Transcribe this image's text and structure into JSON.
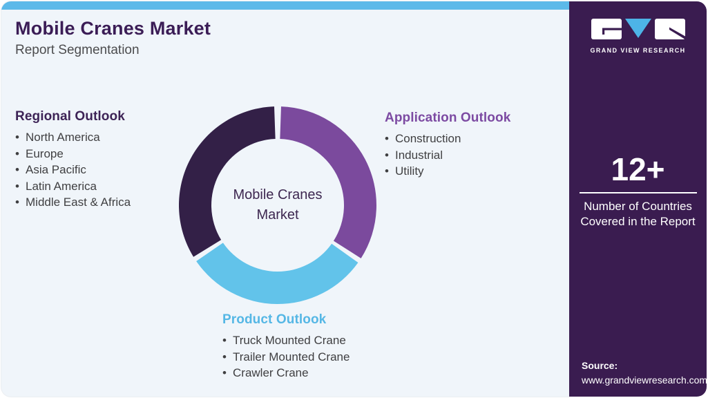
{
  "header": {
    "title": "Mobile Cranes Market",
    "subtitle": "Report Segmentation"
  },
  "sections": {
    "regional": {
      "heading": "Regional Outlook",
      "heading_color": "#3d2356",
      "items": [
        "North America",
        "Europe",
        "Asia Pacific",
        "Latin America",
        "Middle East & Africa"
      ]
    },
    "application": {
      "heading": "Application Outlook",
      "heading_color": "#7c4aa2",
      "items": [
        "Construction",
        "Industrial",
        "Utility"
      ]
    },
    "product": {
      "heading": "Product Outlook",
      "heading_color": "#55b7e5",
      "items": [
        "Truck Mounted Crane",
        "Trailer Mounted Crane",
        "Crawler Crane"
      ]
    }
  },
  "donut": {
    "center_label": "Mobile Cranes Market",
    "outer_radius": 143,
    "inner_radius": 96,
    "segments": [
      {
        "label": "Application Outlook",
        "color": "#7b4a9d",
        "start_deg": 2,
        "end_deg": 122.5
      },
      {
        "label": "Product Outlook",
        "color": "#62c3ea",
        "start_deg": 125.5,
        "end_deg": 235.5
      },
      {
        "label": "Regional Outlook",
        "color": "#332047",
        "start_deg": 238.5,
        "end_deg": 358
      }
    ]
  },
  "sidebar": {
    "logo_text": "GRAND VIEW RESEARCH",
    "stat_value": "12+",
    "stat_label": "Number of Countries Covered in the Report",
    "source_label": "Source:",
    "source_url": "www.grandviewresearch.com",
    "background_color": "#3a1c50",
    "logo_triangle_color": "#4db4e7"
  },
  "theme": {
    "topbar_color": "#5cb9e9",
    "panel_background": "#f0f5fa",
    "title_color": "#3b1d56"
  }
}
